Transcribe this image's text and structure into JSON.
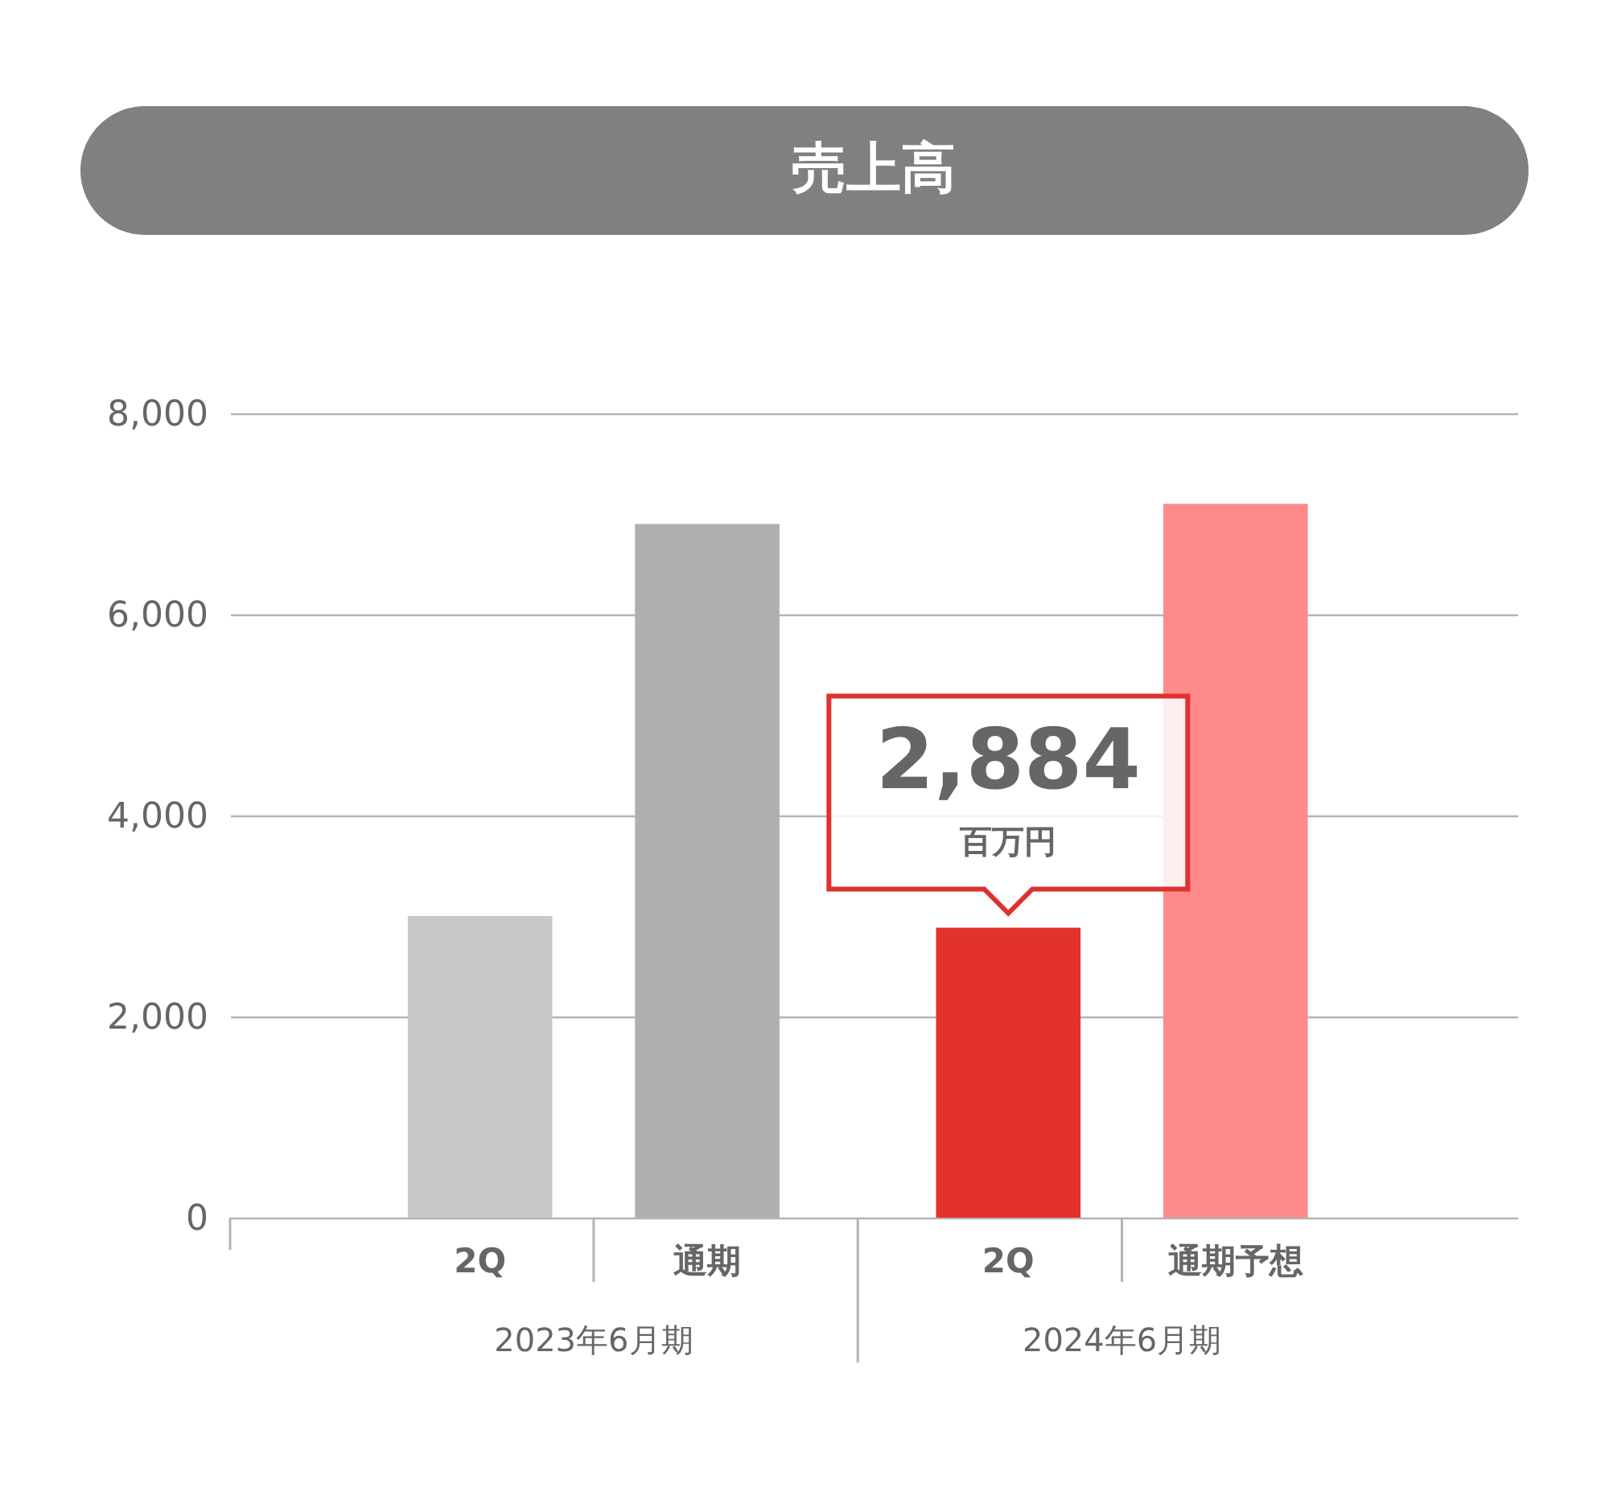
{
  "chart_data": {
    "type": "bar",
    "title": "売上高",
    "categories": [
      "2Q",
      "通期",
      "2Q",
      "通期予想"
    ],
    "values": [
      3000,
      6900,
      2884,
      7100
    ],
    "colors": [
      "#c8c8c8",
      "#afafaf",
      "#e3312b",
      "#ff8a8a"
    ],
    "value_labels": [
      null,
      null,
      "2,884",
      null
    ],
    "annotations": [
      "2023年6月期",
      "2024年6月期",
      "百万円"
    ],
    "ylim": [
      0,
      8000
    ],
    "yticks": [
      0,
      {
        "value": 2000,
        "label": "2,000"
      },
      {
        "value": 4000,
        "label": "4,000"
      },
      {
        "value": 6000,
        "label": "6,000"
      },
      {
        "value": 8000,
        "label": "8,000"
      }
    ],
    "grid": "y",
    "legend": false
  }
}
